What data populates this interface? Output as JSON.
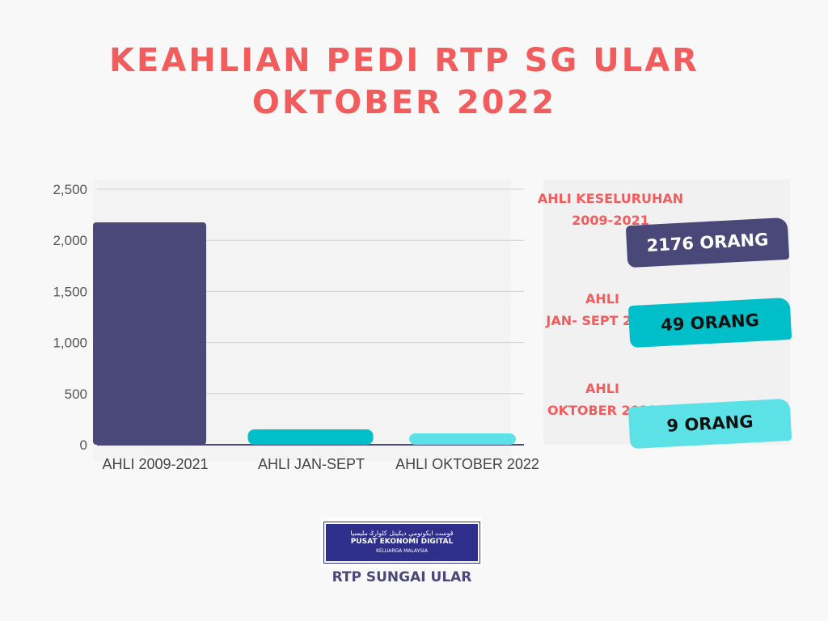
{
  "title_line1": "KEAHLIAN PEDI RTP SG ULAR",
  "title_line2": "OKTOBER 2022",
  "chart_data": {
    "type": "bar",
    "categories": [
      "AHLI 2009-2021",
      "AHLI JAN-SEPT",
      "AHLI OKTOBER 2022"
    ],
    "values": [
      2176,
      49,
      9
    ],
    "colors": [
      "#4a4878",
      "#00bfc8",
      "#5ce1e6"
    ],
    "yticks": [
      "0",
      "500",
      "1,000",
      "1,500",
      "2,000",
      "2,500"
    ],
    "ylim": [
      0,
      2500
    ],
    "grid": true
  },
  "summary": [
    {
      "label1": "AHLI KESELURUHAN",
      "label2": "2009-2021",
      "value": "2176 ORANG",
      "color": "#4a4878",
      "text_color": "#ffffff"
    },
    {
      "label1": "AHLI",
      "label2": "JAN- SEPT 2022",
      "value": "49 ORANG",
      "color": "#00bfc8",
      "text_color": "#111111"
    },
    {
      "label1": "AHLI",
      "label2": "OKTOBER  2022",
      "value": "9 ORANG",
      "color": "#5ce1e6",
      "text_color": "#111111"
    }
  ],
  "logo": {
    "jawi": "ڤوست ايكونومي ديݢيتل کلوارݢ مليسيا",
    "line1": "PUSAT EKONOMI DIGITAL",
    "line2": "KELUARGA MALAYSIA"
  },
  "footer": "RTP SUNGAI ULAR"
}
